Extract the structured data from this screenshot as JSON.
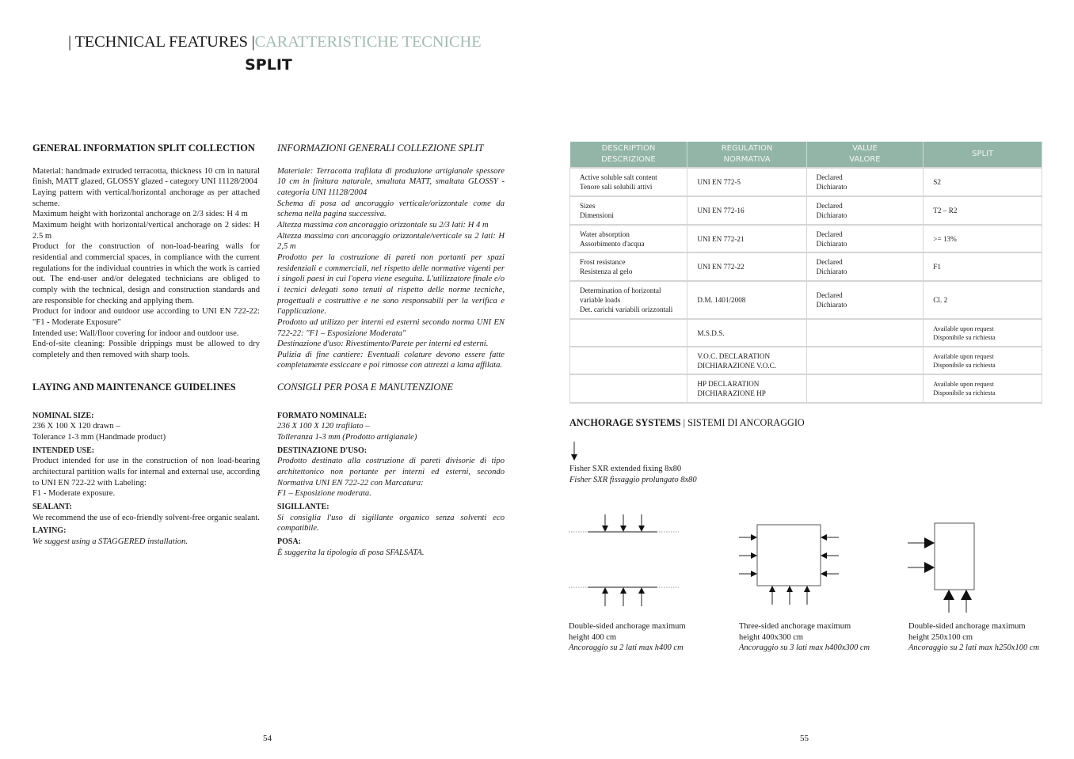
{
  "header": {
    "sep": "|",
    "title_en": "TECHNICAL FEATURES",
    "title_it": "CARATTERISTICHE TECNICHE",
    "product": "SPLIT"
  },
  "general_en": {
    "heading": "GENERAL INFORMATION SPLIT COLLECTION",
    "paragraphs": [
      "Material: handmade extruded terracotta, thickness 10 cm in natural finish, MATT glazed, GLOSSY glazed - category UNI 11128/2004",
      "Laying pattern with vertical/horizontal anchorage as per attached scheme.",
      "Maximum height with horizontal anchorage on 2/3 sides: H 4 m",
      "Maximum height with horizontal/vertical anchorage on 2 sides: H 2.5 m",
      "Product for the construction of non-load-bearing walls for residential and commercial spaces, in compliance with the current regulations for the individual countries in which the work is carried out. The end-user and/or delegated technicians are obliged to comply with the technical, design and construction standards and are responsible for checking and applying them.",
      "Product for indoor and outdoor use according to UNI EN 722-22: \"F1 - Moderate Exposure\"",
      "Intended use: Wall/floor covering for indoor and outdoor use.",
      "End-of-site cleaning: Possible drippings must be allowed to dry completely and then removed with sharp tools."
    ]
  },
  "general_it": {
    "heading": "INFORMAZIONI GENERALI COLLEZIONE SPLIT",
    "paragraphs": [
      "Materiale: Terracotta trafilata di produzione artigianale spessore 10 cm in finitura naturale, smaltata MATT, smaltata GLOSSY - categoria UNI 11128/2004",
      "Schema di posa ad ancoraggio verticale/orizzontale come da schema nella pagina successiva.",
      "Altezza massima con ancoraggio orizzontale su 2/3 lati: H 4 m",
      "Altezza massima con ancoraggio orizzontale/verticale su 2 lati: H 2,5 m",
      "Prodotto per la costruzione di pareti non portanti per spazi residenziali e commerciali, nel rispetto delle normative vigenti per i singoli paesi in cui l'opera viene eseguita. L'utilizzatore finale e/o i tecnici delegati sono tenuti al rispetto delle norme tecniche, progettuali e costruttive e ne sono responsabili per la verifica e l'applicazione.",
      "Prodotto ad utilizzo per interni ed esterni secondo norma UNI EN 722-22: \"F1 – Esposizione Moderata\"",
      "Destinazione d'uso: Rivestimento/Parete per interni ed esterni.",
      "Pulizia di fine cantiere: Eventuali colature devono essere fatte completamente essiccare e poi rimosse con attrezzi a lama affilata."
    ]
  },
  "laying_en": {
    "heading": "LAYING AND MAINTENANCE GUIDELINES",
    "sections": [
      {
        "label": "NOMINAL SIZE:",
        "text": "236 X 100 X 120 drawn –\nTolerance 1-3 mm (Handmade product)"
      },
      {
        "label": "INTENDED USE:",
        "text": "Product intended for use in the construction of non load-bearing architectural partition walls for internal and external use, according to UNI EN 722-22 with Labeling:\nF1 - Moderate exposure."
      },
      {
        "label": "SEALANT:",
        "text": "We recommend the use of eco-friendly solvent-free organic sealant."
      },
      {
        "label": "LAYING:",
        "text": "We suggest using a STAGGERED installation."
      }
    ]
  },
  "laying_it": {
    "heading": "CONSIGLI PER POSA E MANUTENZIONE",
    "sections": [
      {
        "label": "FORMATO NOMINALE:",
        "text": "236 X 100 X 120 trafilato –\nTolleranza 1-3 mm (Prodotto artigianale)"
      },
      {
        "label": "DESTINAZIONE D'USO:",
        "text": "Prodotto destinato alla costruzione di pareti divisorie di tipo architettonico non portante per interni ed esterni, secondo Normativa UNI EN 722-22 con Marcatura:\nF1 – Esposizione moderata."
      },
      {
        "label": "SIGILLANTE:",
        "text": "Si consiglia l'uso di sigillante organico senza solventi eco compatibile."
      },
      {
        "label": "POSA:",
        "text": "È suggerita la tipologia di posa SFALSATA."
      }
    ]
  },
  "table": {
    "header_color": "#93b5a8",
    "headers": [
      "DESCRIPTION\nDESCRIZIONE",
      "REGULATION\nNORMATIVA",
      "VALUE\nVALORE",
      "SPLIT"
    ],
    "rows": [
      [
        "Active soluble salt content\nTenore sali solubili attivi",
        "UNI EN 772-5",
        "Declared\nDichiarato",
        "S2"
      ],
      [
        "Sizes\nDimensioni",
        "UNI EN 772-16",
        "Declared\nDichiarato",
        "T2 – R2"
      ],
      [
        "Water absorption\nAssorbimento d'acqua",
        "UNI EN 772-21",
        "Declared\nDichiarato",
        ">= 13%"
      ],
      [
        "Frost resistance\nResistenza al gelo",
        "UNI EN 772-22",
        "Declared\nDichiarato",
        "F1"
      ],
      [
        "Determination of horizontal\nvariable loads\nDet. carichi variabili orizzontali",
        "D.M. 1401/2008",
        "Declared\nDichiarato",
        "Cl. 2"
      ],
      [
        "",
        "M.S.D.S.",
        "",
        "Available upon request\nDisponibile su richiesta"
      ],
      [
        "",
        "V.O.C. DECLARATION\nDICHIARAZIONE V.O.C.",
        "",
        "Available upon request\nDisponibile su richiesta"
      ],
      [
        "",
        "HP DECLARATION\nDICHIARAZIONE HP",
        "",
        "Available upon request\nDisponibile su richiesta"
      ]
    ]
  },
  "anchorage": {
    "title_en": "ANCHORAGE SYSTEMS",
    "sep": "|",
    "title_it": "SISTEMI DI ANCORAGGIO",
    "legend_icon": "arrow-down-icon",
    "legend_en": "Fisher SXR extended fixing 8x80",
    "legend_it": "Fisher SXR fissaggio prolungato 8x80",
    "diagrams": [
      {
        "en": "Double-sided anchorage maximum\nheight 400 cm",
        "it": "Ancoraggio su 2 lati max h400 cm"
      },
      {
        "en": "Three-sided anchorage maximum\nheight 400x300 cm",
        "it": "Ancoraggio su 3 lati max h400x300 cm"
      },
      {
        "en": "Double-sided anchorage maximum\nheight 250x100 cm",
        "it": "Ancoraggio su 2 lati max h250x100 cm"
      }
    ]
  },
  "pages": {
    "left": "54",
    "right": "55"
  }
}
